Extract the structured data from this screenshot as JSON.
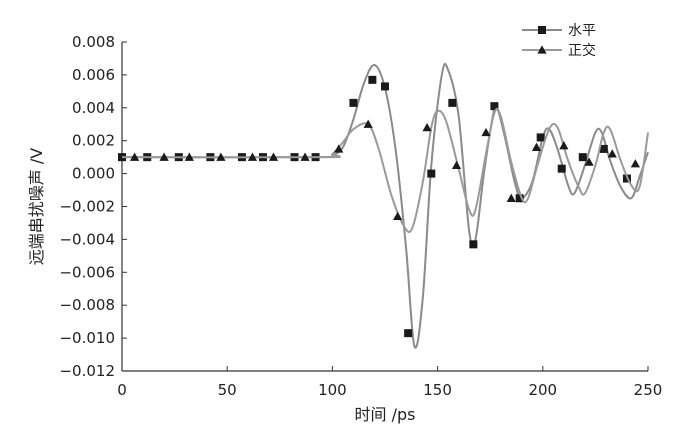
{
  "chart_data": {
    "type": "line",
    "xlabel": "时间 /ps",
    "ylabel": "远端串扰噪声 /V",
    "xlim": [
      0,
      250
    ],
    "ylim": [
      -0.012,
      0.008
    ],
    "xticks": [
      "0",
      "50",
      "100",
      "150",
      "200",
      "250"
    ],
    "yticks": [
      "0.008",
      "0.006",
      "0.004",
      "0.002",
      "0.000",
      "−0.002",
      "−0.004",
      "−0.006",
      "−0.008",
      "−0.010",
      "−0.012"
    ],
    "grid": false,
    "legend_position": "top-right",
    "series": [
      {
        "name": "水平",
        "marker": "square",
        "curve": [
          [
            0,
            0.001
          ],
          [
            95,
            0.001
          ],
          [
            100,
            0.0011
          ],
          [
            105,
            0.0016
          ],
          [
            110,
            0.0033
          ],
          [
            115,
            0.0055
          ],
          [
            120,
            0.0066
          ],
          [
            125,
            0.0052
          ],
          [
            130,
            0.0015
          ],
          [
            135,
            -0.0045
          ],
          [
            139,
            -0.0105
          ],
          [
            143,
            -0.0075
          ],
          [
            147,
            0.0005
          ],
          [
            152,
            0.006
          ],
          [
            155,
            0.0063
          ],
          [
            160,
            0.0035
          ],
          [
            165,
            -0.0035
          ],
          [
            168,
            -0.004
          ],
          [
            172,
            0.0
          ],
          [
            176,
            0.0033
          ],
          [
            178,
            0.0041
          ],
          [
            182,
            0.0022
          ],
          [
            187,
            -0.0007
          ],
          [
            190,
            -0.0015
          ],
          [
            195,
            -0.0005
          ],
          [
            200,
            0.0022
          ],
          [
            203,
            0.0027
          ],
          [
            207,
            0.0015
          ],
          [
            212,
            -0.0007
          ],
          [
            215,
            -0.0012
          ],
          [
            220,
            0.0005
          ],
          [
            225,
            0.0025
          ],
          [
            228,
            0.0025
          ],
          [
            232,
            0.0008
          ],
          [
            237,
            -0.0008
          ],
          [
            242,
            -0.0015
          ],
          [
            246,
            -0.0002
          ],
          [
            250,
            0.0013
          ]
        ],
        "points": [
          [
            0,
            0.001
          ],
          [
            12,
            0.001
          ],
          [
            27,
            0.001
          ],
          [
            42,
            0.001
          ],
          [
            57,
            0.001
          ],
          [
            67,
            0.001
          ],
          [
            82,
            0.001
          ],
          [
            92,
            0.001
          ],
          [
            110,
            0.0043
          ],
          [
            119,
            0.0057
          ],
          [
            125,
            0.0053
          ],
          [
            136,
            -0.0097
          ],
          [
            147,
            0.0
          ],
          [
            157,
            0.0043
          ],
          [
            167,
            -0.0043
          ],
          [
            177,
            0.0041
          ],
          [
            189,
            -0.0015
          ],
          [
            199,
            0.0022
          ],
          [
            209,
            0.0003
          ],
          [
            219,
            0.001
          ],
          [
            229,
            0.0015
          ],
          [
            240,
            -0.0003
          ]
        ]
      },
      {
        "name": "正交",
        "marker": "triangle",
        "curve": [
          [
            0,
            0.001
          ],
          [
            95,
            0.001
          ],
          [
            100,
            0.0012
          ],
          [
            105,
            0.0019
          ],
          [
            110,
            0.0027
          ],
          [
            117,
            0.003
          ],
          [
            122,
            0.0015
          ],
          [
            128,
            -0.0013
          ],
          [
            134,
            -0.0032
          ],
          [
            138,
            -0.0033
          ],
          [
            143,
            -0.0005
          ],
          [
            147,
            0.0028
          ],
          [
            150,
            0.0038
          ],
          [
            154,
            0.0032
          ],
          [
            160,
            0.0003
          ],
          [
            165,
            -0.0022
          ],
          [
            168,
            -0.0022
          ],
          [
            173,
            0.0012
          ],
          [
            177,
            0.0037
          ],
          [
            180,
            0.0035
          ],
          [
            185,
            0.0007
          ],
          [
            190,
            -0.0015
          ],
          [
            193,
            -0.0015
          ],
          [
            197,
            0.0003
          ],
          [
            203,
            0.0027
          ],
          [
            207,
            0.0028
          ],
          [
            212,
            0.0008
          ],
          [
            217,
            -0.0008
          ],
          [
            220,
            -0.0012
          ],
          [
            225,
            0.0005
          ],
          [
            229,
            0.0025
          ],
          [
            232,
            0.0027
          ],
          [
            237,
            0.0008
          ],
          [
            242,
            -0.0007
          ],
          [
            246,
            -0.0008
          ],
          [
            250,
            0.0025
          ]
        ],
        "points": [
          [
            6,
            0.001
          ],
          [
            20,
            0.001
          ],
          [
            32,
            0.001
          ],
          [
            47,
            0.001
          ],
          [
            62,
            0.001
          ],
          [
            72,
            0.001
          ],
          [
            87,
            0.001
          ],
          [
            103,
            0.0015
          ],
          [
            117,
            0.003
          ],
          [
            131,
            -0.0026
          ],
          [
            145,
            0.0028
          ],
          [
            159,
            0.0005
          ],
          [
            173,
            0.0025
          ],
          [
            185,
            -0.0015
          ],
          [
            197,
            0.0016
          ],
          [
            210,
            0.0017
          ],
          [
            222,
            0.0007
          ],
          [
            233,
            0.0012
          ],
          [
            244,
            0.0006
          ]
        ]
      }
    ]
  }
}
